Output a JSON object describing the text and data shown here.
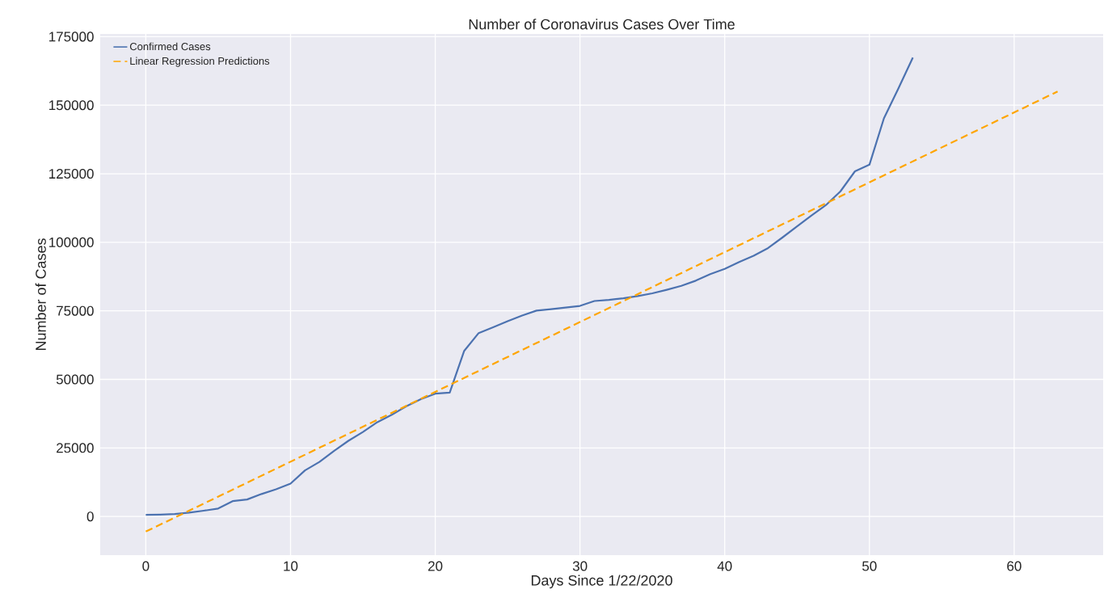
{
  "chart_data": {
    "type": "line",
    "title": "Number of Coronavirus Cases Over Time",
    "xlabel": "Days Since 1/22/2020",
    "ylabel": "Number of Cases",
    "x": [
      0,
      1,
      2,
      3,
      4,
      5,
      6,
      7,
      8,
      9,
      10,
      11,
      12,
      13,
      14,
      15,
      16,
      17,
      18,
      19,
      20,
      21,
      22,
      23,
      24,
      25,
      26,
      27,
      28,
      29,
      30,
      31,
      32,
      33,
      34,
      35,
      36,
      37,
      38,
      39,
      40,
      41,
      42,
      43,
      44,
      45,
      46,
      47,
      48,
      49,
      50,
      51,
      52,
      53
    ],
    "series": [
      {
        "name": "Confirmed Cases",
        "color": "#4c72b0",
        "values": [
          600,
          700,
          900,
          1400,
          2100,
          2900,
          5600,
          6200,
          8200,
          9900,
          12000,
          16800,
          19900,
          23900,
          27600,
          30800,
          34400,
          37100,
          40200,
          42800,
          44800,
          45200,
          60400,
          66900,
          69000,
          71200,
          73300,
          75100,
          75600,
          76200,
          76800,
          78600,
          79000,
          79600,
          80400,
          81400,
          82700,
          84100,
          86000,
          88400,
          90300,
          92800,
          95100,
          97900,
          101800,
          105800,
          109800,
          113600,
          118600,
          125900,
          128300,
          145200,
          156100,
          167400
        ]
      },
      {
        "name": "Linear Regression Predictions",
        "color": "#ffa500",
        "line_style": "dashed",
        "x": [
          0,
          63
        ],
        "values": [
          -5500,
          155000
        ]
      }
    ],
    "xlim": [
      -3.15,
      66.15
    ],
    "ylim": [
      -14100,
      176000
    ],
    "xticks": [
      0,
      10,
      20,
      30,
      40,
      50,
      60
    ],
    "yticks": [
      0,
      25000,
      50000,
      75000,
      100000,
      125000,
      150000,
      175000
    ],
    "grid": true,
    "legend": "top left"
  }
}
